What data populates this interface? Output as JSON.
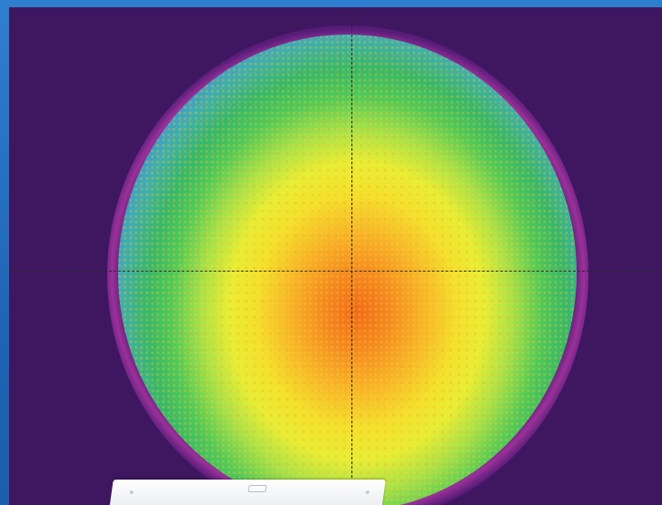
{
  "window": {
    "background_color": "#2f7fd1",
    "viewport_background_color": "#3e1760"
  },
  "beam_profile": {
    "colormap": [
      "#f06a1a",
      "#f7b52a",
      "#f3e12e",
      "#4fc95a",
      "#3faeb0",
      "#2c52c8",
      "#e05ad0"
    ],
    "crosshair_style": "dashed"
  },
  "device": {
    "icon": "sensor-device-icon"
  }
}
